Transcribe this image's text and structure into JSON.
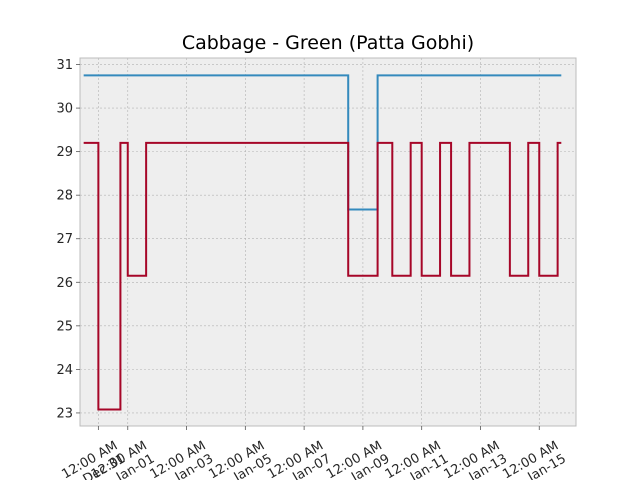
{
  "chart_data": {
    "type": "line",
    "title": "Cabbage - Green (Patta Gobhi)",
    "xlabel": "",
    "ylabel": "",
    "step": "post",
    "x_ticks": [
      {
        "x": "2020-12-31",
        "line1": "12:00 AM",
        "line2": "Dec 31"
      },
      {
        "x": "2021-01-01",
        "line1": "12:00 AM",
        "line2": "Jan-01"
      },
      {
        "x": "2021-01-03",
        "line1": "12:00 AM",
        "line2": "Jan-03"
      },
      {
        "x": "2021-01-05",
        "line1": "12:00 AM",
        "line2": "Jan-05"
      },
      {
        "x": "2021-01-07",
        "line1": "12:00 AM",
        "line2": "Jan-07"
      },
      {
        "x": "2021-01-09",
        "line1": "12:00 AM",
        "line2": "Jan-09"
      },
      {
        "x": "2021-01-11",
        "line1": "12:00 AM",
        "line2": "Jan-11"
      },
      {
        "x": "2021-01-13",
        "line1": "12:00 AM",
        "line2": "Jan-13"
      },
      {
        "x": "2021-01-15",
        "line1": "12:00 AM",
        "line2": "Jan-15"
      }
    ],
    "y_ticks": [
      23,
      24,
      25,
      26,
      27,
      28,
      29,
      30,
      31
    ],
    "xlim": [
      "2020-12-30 09:00",
      "2021-01-16 06:00"
    ],
    "ylim": [
      22.7,
      31.15
    ],
    "grid": true,
    "series": [
      {
        "color": "#348abd",
        "points": [
          [
            "2020-12-30 12:00",
            30.75
          ],
          [
            "2021-01-08 12:00",
            27.67
          ],
          [
            "2021-01-09 12:00",
            30.75
          ],
          [
            "2021-01-15 18:00",
            30.75
          ]
        ]
      },
      {
        "color": "#a60628",
        "points": [
          [
            "2020-12-30 12:00",
            29.2
          ],
          [
            "2020-12-31 00:00",
            23.08
          ],
          [
            "2020-12-31 18:00",
            29.2
          ],
          [
            "2021-01-01 00:00",
            26.15
          ],
          [
            "2021-01-01 15:00",
            29.2
          ],
          [
            "2021-01-08 12:00",
            26.15
          ],
          [
            "2021-01-09 12:00",
            29.2
          ],
          [
            "2021-01-10 00:00",
            26.15
          ],
          [
            "2021-01-10 15:00",
            29.2
          ],
          [
            "2021-01-11 00:00",
            26.15
          ],
          [
            "2021-01-11 15:00",
            29.2
          ],
          [
            "2021-01-12 00:00",
            26.15
          ],
          [
            "2021-01-12 15:00",
            29.2
          ],
          [
            "2021-01-14 00:00",
            26.15
          ],
          [
            "2021-01-14 15:00",
            29.2
          ],
          [
            "2021-01-15 00:00",
            26.15
          ],
          [
            "2021-01-15 15:00",
            29.2
          ],
          [
            "2021-01-15 18:00",
            29.2
          ]
        ]
      }
    ]
  }
}
